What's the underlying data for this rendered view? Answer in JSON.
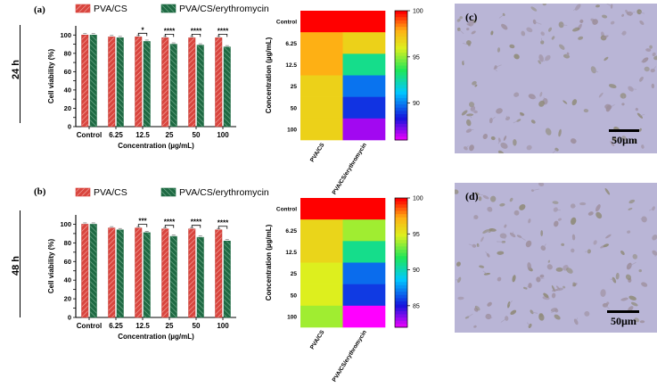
{
  "row_labels": [
    "24 h",
    "48 h"
  ],
  "colors": {
    "pva_cs": "#d9453e",
    "pva_cs_ery": "#1e6a43",
    "micrograph_bg": "#b9b5d6",
    "cell": "#8a7a8e"
  },
  "chart_data": [
    {
      "type": "bar",
      "panel": "(a)",
      "legend": [
        "PVA/CS",
        "PVA/CS/erythromycin"
      ],
      "categories": [
        "Control",
        "6.25",
        "12.5",
        "25",
        "50",
        "100"
      ],
      "xlabel": "Concentration (µg/mL)",
      "ylabel": "Cell viability (%)",
      "ylim": [
        0,
        110
      ],
      "yticks": [
        0,
        10,
        20,
        30,
        40,
        50,
        60,
        70,
        80,
        90,
        100
      ],
      "series": [
        {
          "name": "PVA/CS",
          "values": [
            100,
            98,
            98,
            97,
            97,
            97
          ]
        },
        {
          "name": "PVA/CS/erythromycin",
          "values": [
            100,
            97,
            93,
            90,
            89,
            87
          ]
        }
      ],
      "significance": [
        "",
        "",
        "*",
        "****",
        "****",
        "****"
      ]
    },
    {
      "type": "bar",
      "panel": "(b)",
      "legend": [
        "PVA/CS",
        "PVA/CS/erythromycin"
      ],
      "categories": [
        "Control",
        "6.25",
        "12.5",
        "25",
        "50",
        "100"
      ],
      "xlabel": "Concentration (µg/mL)",
      "ylabel": "Cell viability (%)",
      "ylim": [
        0,
        110
      ],
      "yticks": [
        0,
        10,
        20,
        30,
        40,
        50,
        60,
        70,
        80,
        90,
        100
      ],
      "series": [
        {
          "name": "PVA/CS",
          "values": [
            100,
            96,
            96,
            95,
            95,
            94
          ]
        },
        {
          "name": "PVA/CS/erythromycin",
          "values": [
            100,
            94,
            91,
            87,
            86,
            82
          ]
        }
      ],
      "significance": [
        "",
        "",
        "***",
        "****",
        "****",
        "****"
      ]
    },
    {
      "type": "heatmap",
      "rows": [
        "Control",
        "6.25",
        "12.5",
        "25",
        "50",
        "100"
      ],
      "columns": [
        "PVA/CS",
        "PVA/CS/erythromycin"
      ],
      "ylabel": "Concentration (µg/mL)",
      "values": [
        [
          100,
          100
        ],
        [
          98,
          97
        ],
        [
          98,
          93
        ],
        [
          97,
          90
        ],
        [
          97,
          89
        ],
        [
          97,
          87
        ]
      ],
      "colorbar": {
        "min": 86,
        "max": 100,
        "ticks": [
          100,
          95,
          90
        ]
      }
    },
    {
      "type": "heatmap",
      "rows": [
        "Control",
        "6.25",
        "12.5",
        "25",
        "50",
        "100"
      ],
      "columns": [
        "PVA/CS",
        "PVA/CS/erythromycin"
      ],
      "ylabel": "Concentration (µg/mL)",
      "values": [
        [
          100,
          100
        ],
        [
          96,
          94
        ],
        [
          96,
          91
        ],
        [
          95,
          87
        ],
        [
          95,
          86
        ],
        [
          94,
          82
        ]
      ],
      "colorbar": {
        "min": 82,
        "max": 100,
        "ticks": [
          100,
          95,
          90,
          85
        ]
      }
    }
  ],
  "micrographs": [
    {
      "label": "(c)",
      "scale": "50µm"
    },
    {
      "label": "(d)",
      "scale": "50µm"
    }
  ]
}
